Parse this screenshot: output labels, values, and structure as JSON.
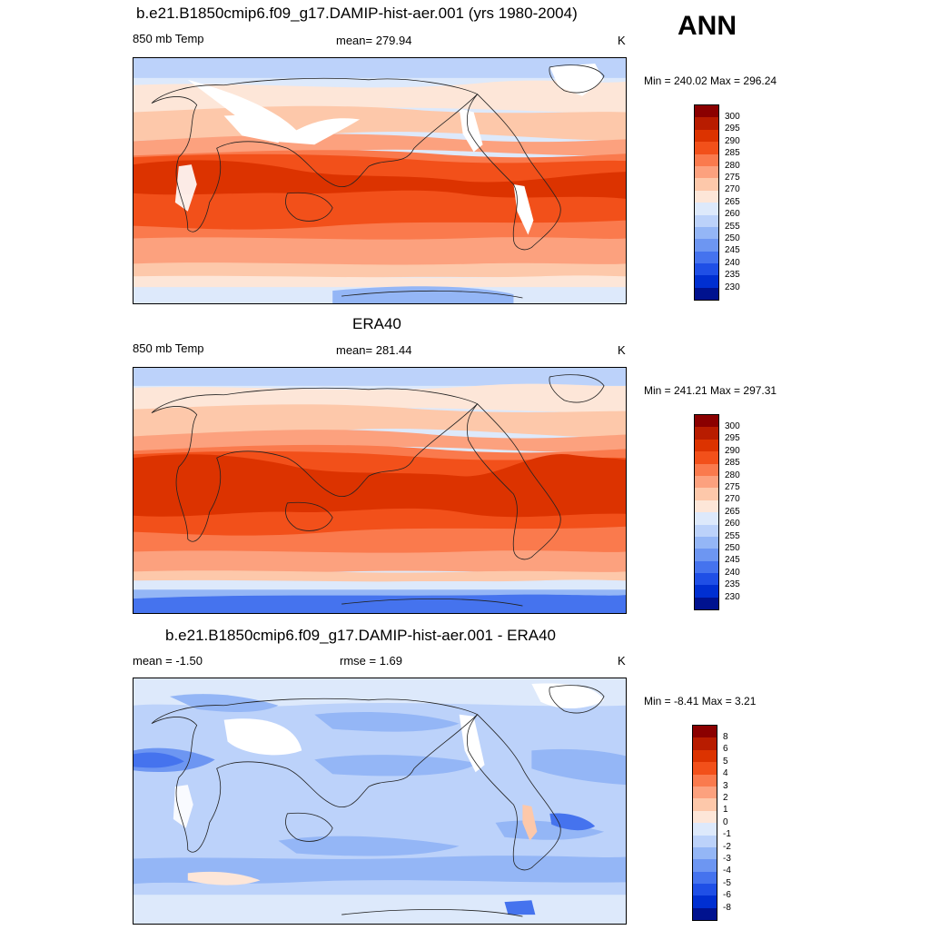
{
  "season": "ANN",
  "panels": [
    {
      "title": "b.e21.B1850cmip6.f09_g17.DAMIP-hist-aer.001 (yrs 1980-2004)",
      "left_label": "850 mb Temp",
      "center_label": "mean= 279.94",
      "units": "K",
      "minmax": "Min = 240.02 Max = 296.24",
      "colorbar_labels": [
        "300",
        "295",
        "290",
        "285",
        "280",
        "275",
        "270",
        "265",
        "260",
        "255",
        "250",
        "245",
        "240",
        "235",
        "230"
      ]
    },
    {
      "title": "ERA40",
      "left_label": "850 mb Temp",
      "center_label": "mean= 281.44",
      "units": "K",
      "minmax": "Min = 241.21 Max = 297.31",
      "colorbar_labels": [
        "300",
        "295",
        "290",
        "285",
        "280",
        "275",
        "270",
        "265",
        "260",
        "255",
        "250",
        "245",
        "240",
        "235",
        "230"
      ]
    },
    {
      "title": "b.e21.B1850cmip6.f09_g17.DAMIP-hist-aer.001 - ERA40",
      "left_label": "mean =  -1.50",
      "center_label": "rmse =   1.69",
      "units": "K",
      "minmax": "Min =  -8.41 Max =   3.21",
      "colorbar_labels": [
        "8",
        "6",
        "5",
        "4",
        "3",
        "2",
        "1",
        "0",
        "-1",
        "-2",
        "-3",
        "-4",
        "-5",
        "-6",
        "-8"
      ]
    }
  ],
  "colors": {
    "temp_scale": [
      "#8b0000",
      "#b81c00",
      "#dc3300",
      "#f2501a",
      "#fa7a4d",
      "#fca17e",
      "#fdc8aa",
      "#fde6d8",
      "#dde9fb",
      "#bcd2fa",
      "#94b6f6",
      "#6d96f2",
      "#4573ee",
      "#1f4fe6",
      "#002fd1",
      "#00128f"
    ],
    "diff_scale": [
      "#8b0000",
      "#b81c00",
      "#dc3300",
      "#f2501a",
      "#fa7a4d",
      "#fca17e",
      "#fdc8aa",
      "#fde6d8",
      "#dde9fb",
      "#bcd2fa",
      "#94b6f6",
      "#6d96f2",
      "#4573ee",
      "#1f4fe6",
      "#002fd1",
      "#00128f"
    ],
    "missing": "#ffffff"
  }
}
